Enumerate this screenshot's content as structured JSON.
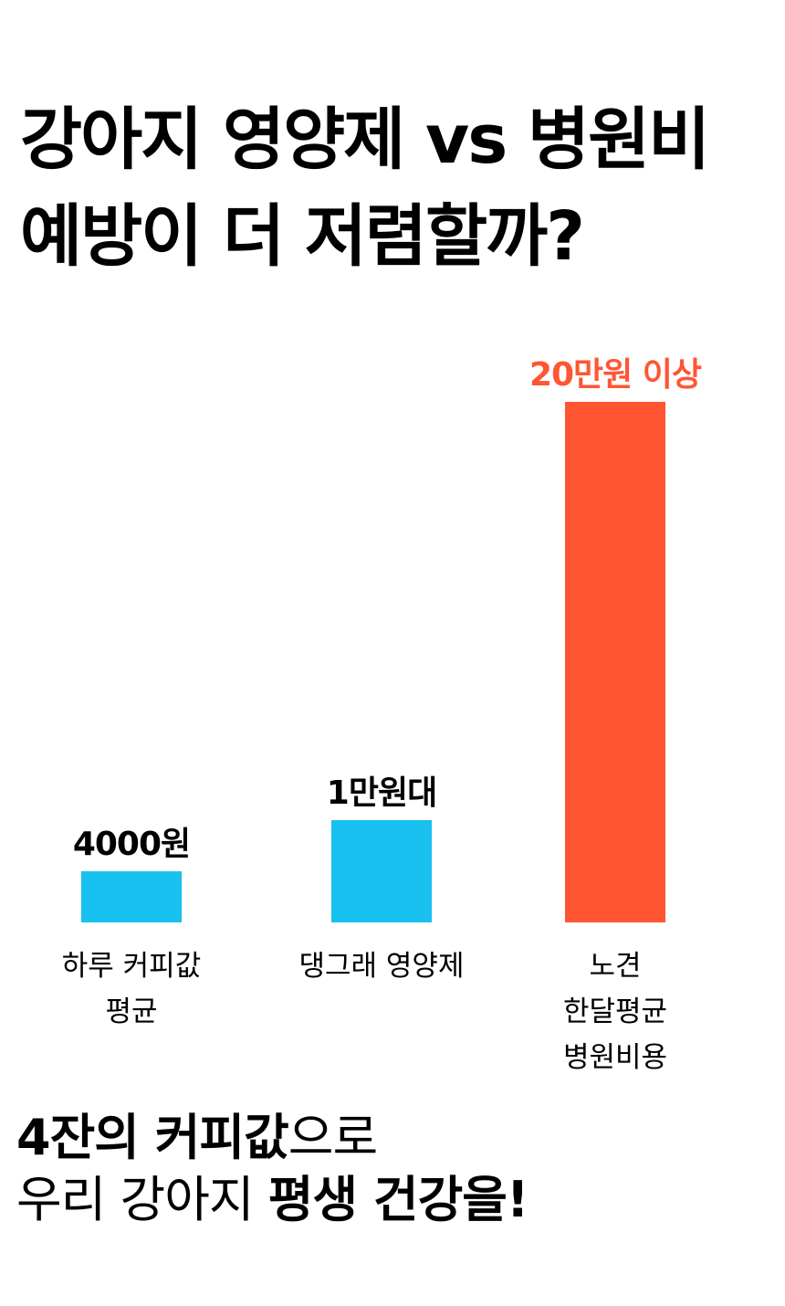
{
  "headline": {
    "line1": "강아지 영양제 vs 병원비",
    "line2": "예방이 더 저렴할까?"
  },
  "chart_data": {
    "type": "bar",
    "categories": [
      [
        "하루 커피값",
        "평균"
      ],
      [
        "댕그래 영양제"
      ],
      [
        "노견",
        "한달평균",
        "병원비용"
      ]
    ],
    "values": [
      4000,
      10000,
      200000
    ],
    "data_labels": [
      "4000원",
      "1만원대",
      "20만원 이상"
    ],
    "colors": [
      "#18c1f0",
      "#18c1f0",
      "#ff5533"
    ],
    "label_colors": [
      "#000000",
      "#000000",
      "#ff5533"
    ],
    "title": "",
    "xlabel": "",
    "ylabel": "",
    "grid": false,
    "axes_visible": false
  },
  "footer": {
    "line1_bold": "4잔의 커피값",
    "line1_light": "으로",
    "line2_light": "우리 강아지 ",
    "line2_bold": "평생 건강을!"
  }
}
